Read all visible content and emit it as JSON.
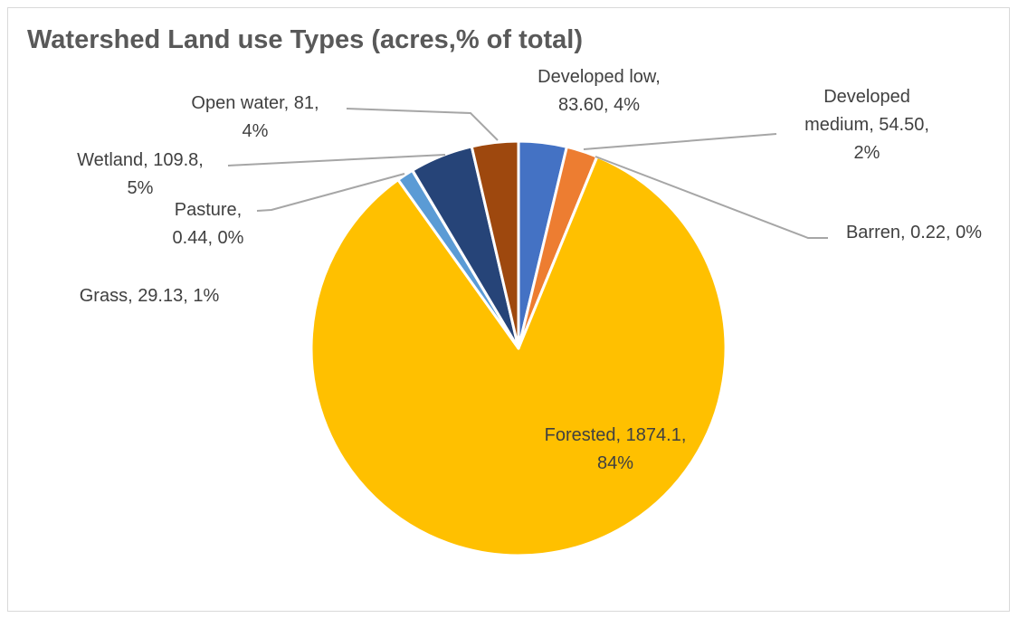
{
  "chart_data": {
    "type": "pie",
    "title": "Watershed Land use Types (acres,% of total)",
    "slices": [
      {
        "name": "Developed low",
        "value": 83.6,
        "value_label": "83.60",
        "percent_label": "4%",
        "color": "#4472C4",
        "label_lines": [
          "Developed low,",
          "83.60, 4%"
        ]
      },
      {
        "name": "Developed medium",
        "value": 54.5,
        "value_label": "54.50",
        "percent_label": "2%",
        "color": "#ED7D31",
        "label_lines": [
          "Developed",
          "medium, 54.50,",
          "2%"
        ]
      },
      {
        "name": "Barren",
        "value": 0.22,
        "value_label": "0.22",
        "percent_label": "0%",
        "color": "#A5A5A5",
        "label_lines": [
          "Barren, 0.22, 0%"
        ]
      },
      {
        "name": "Forested",
        "value": 1874.1,
        "value_label": "1874.1",
        "percent_label": "84%",
        "color": "#FFC000",
        "label_lines": [
          "Forested, 1874.1,",
          "84%"
        ]
      },
      {
        "name": "Grass",
        "value": 29.13,
        "value_label": "29.13",
        "percent_label": "1%",
        "color": "#5B9BD5",
        "label_lines": [
          "Grass, 29.13, 1%"
        ]
      },
      {
        "name": "Pasture",
        "value": 0.44,
        "value_label": "0.44",
        "percent_label": "0%",
        "color": "#70AD47",
        "label_lines": [
          "Pasture,",
          "0.44, 0%"
        ]
      },
      {
        "name": "Wetland",
        "value": 109.8,
        "value_label": "109.8",
        "percent_label": "5%",
        "color": "#264478",
        "label_lines": [
          "Wetland, 109.8,",
          "5%"
        ]
      },
      {
        "name": "Open water",
        "value": 81,
        "value_label": "81",
        "percent_label": "4%",
        "color": "#9E480E",
        "label_lines": [
          "Open water, 81,",
          "4%"
        ]
      }
    ],
    "legend": "none"
  }
}
